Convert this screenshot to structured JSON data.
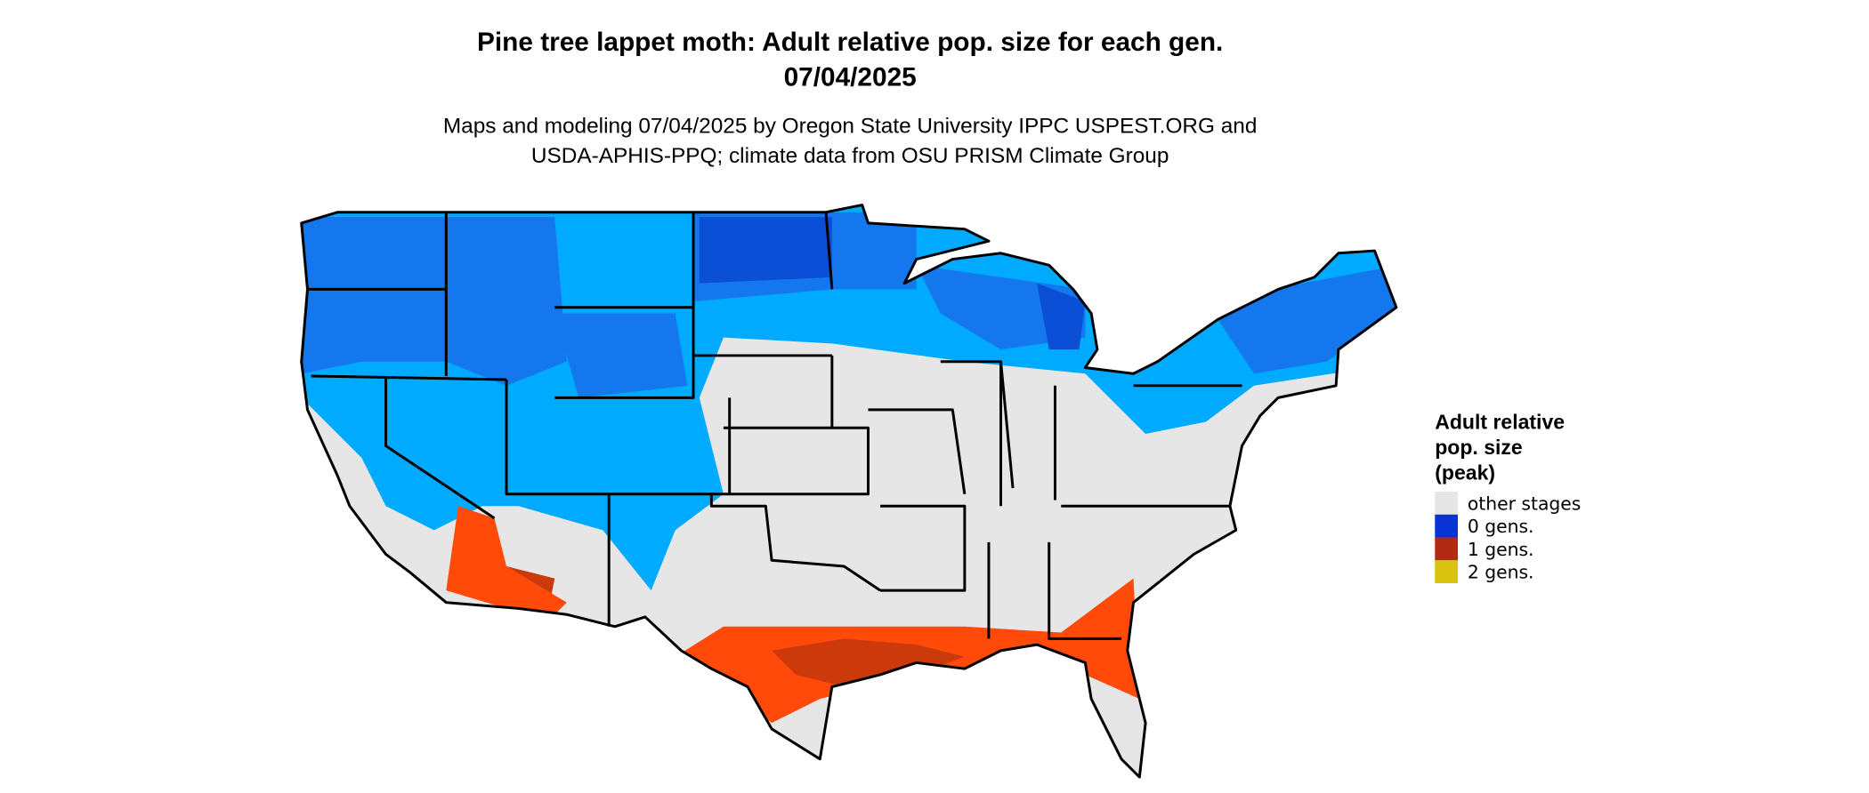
{
  "header": {
    "title": [
      "Pine tree lappet moth: Adult relative pop. size for each gen.",
      "07/04/2025"
    ],
    "subtitle": [
      "Maps and modeling 07/04/2025 by Oregon State University IPPC USPEST.ORG and",
      "USDA-APHIS-PPQ; climate data from OSU PRISM Climate Group"
    ]
  },
  "legend": {
    "title": [
      "Adult relative",
      "pop. size",
      "(peak)"
    ],
    "items": [
      {
        "label": "other stages",
        "color": "#e6e6e6"
      },
      {
        "label": "0 gens.",
        "color": "#0a33d6"
      },
      {
        "label": "1 gens.",
        "color": "#b22a14"
      },
      {
        "label": "2 gens.",
        "color": "#d8c10f"
      }
    ]
  }
}
